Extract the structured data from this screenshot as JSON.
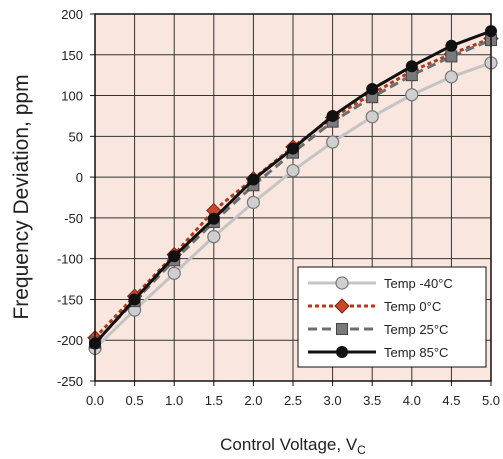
{
  "chart_data": {
    "type": "line",
    "title": "",
    "xlabel": "Control Voltage, V",
    "xlabel_subscript": "C",
    "ylabel": "Frequency Deviation, ppm",
    "xlim": [
      0,
      5
    ],
    "ylim": [
      -250,
      200
    ],
    "x_ticks": [
      "0.0",
      "0.5",
      "1.0",
      "1.5",
      "2.0",
      "2.5",
      "3.0",
      "3.5",
      "4.0",
      "4.5",
      "5.0"
    ],
    "y_ticks": [
      "200",
      "150",
      "100",
      "50",
      "0",
      "-50",
      "-100",
      "-150",
      "-200",
      "-250"
    ],
    "grid": true,
    "legend_position": "bottom-right",
    "background_color": "#f9e6df",
    "x": [
      0,
      0.5,
      1,
      1.5,
      2,
      2.5,
      3,
      3.5,
      4,
      4.5,
      5
    ],
    "series": [
      {
        "name": "Temp -40°C",
        "color": "#c4c4c4",
        "marker": "circle",
        "line": "solid",
        "values": [
          -210,
          -163,
          -118,
          -73,
          -31,
          8,
          43,
          74,
          101,
          123,
          140
        ]
      },
      {
        "name": "Temp 0°C",
        "color": "#b03a1c",
        "marker": "diamond",
        "line": "dotted",
        "values": [
          -197,
          -146,
          -95,
          -41,
          -2,
          37,
          73,
          102,
          130,
          151,
          170
        ]
      },
      {
        "name": "Temp 25°C",
        "color": "#6e6e6e",
        "marker": "square",
        "line": "dashed",
        "values": [
          -203,
          -152,
          -102,
          -55,
          -10,
          30,
          68,
          98,
          125,
          148,
          168
        ]
      },
      {
        "name": "Temp 85°C",
        "color": "#111111",
        "marker": "filled-circle",
        "line": "solid",
        "values": [
          -204,
          -150,
          -97,
          -51,
          -3,
          35,
          75,
          108,
          136,
          161,
          179
        ]
      }
    ]
  }
}
